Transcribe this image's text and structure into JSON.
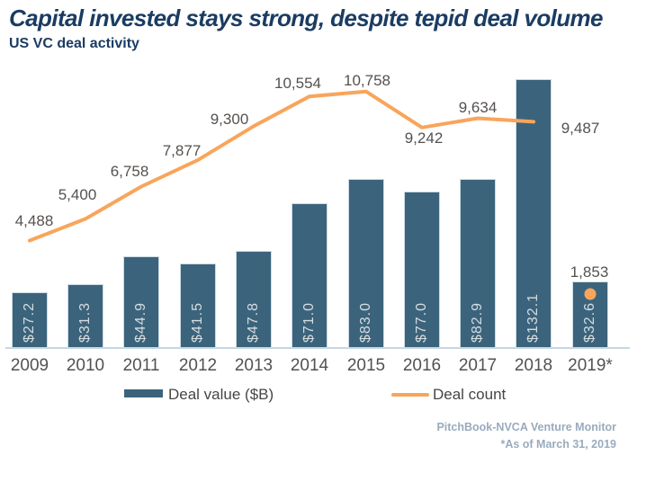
{
  "header": {
    "title": "Capital invested stays strong, despite tepid deal volume",
    "subtitle": "US VC deal activity"
  },
  "chart_data": {
    "type": "bar",
    "title": "US VC deal activity",
    "categories": [
      "2009",
      "2010",
      "2011",
      "2012",
      "2013",
      "2014",
      "2015",
      "2016",
      "2017",
      "2018",
      "2019*"
    ],
    "series": [
      {
        "name": "Deal value ($B)",
        "type": "bar",
        "values": [
          27.2,
          31.3,
          44.9,
          41.5,
          47.8,
          71.0,
          83.0,
          77.0,
          82.9,
          132.1,
          32.6
        ],
        "labels": [
          "$27.2",
          "$31.3",
          "$44.9",
          "$41.5",
          "$47.8",
          "$71.0",
          "$83.0",
          "$77.0",
          "$82.9",
          "$132.1",
          "$32.6"
        ],
        "color": "#3b647c"
      },
      {
        "name": "Deal count",
        "type": "line",
        "values": [
          4488,
          5400,
          6758,
          7877,
          9300,
          10554,
          10758,
          9242,
          9634,
          9487,
          1853
        ],
        "labels": [
          "4,488",
          "5,400",
          "6,758",
          "7,877",
          "9,300",
          "10,554",
          "10,758",
          "9,242",
          "9,634",
          "9,487",
          "1,853"
        ],
        "color": "#f8a55b"
      }
    ],
    "ylim_bar": [
      0,
      140
    ],
    "ylim_line": [
      0,
      12000
    ],
    "grid": false,
    "legend_position": "bottom"
  },
  "legend": {
    "items": [
      {
        "label": "Deal value ($B)",
        "swatch": "bar",
        "color": "#3b647c"
      },
      {
        "label": "Deal count",
        "swatch": "line",
        "color": "#f8a55b"
      }
    ]
  },
  "footer": {
    "source": "PitchBook-NVCA Venture Monitor",
    "note": "*As of March 31, 2019"
  }
}
